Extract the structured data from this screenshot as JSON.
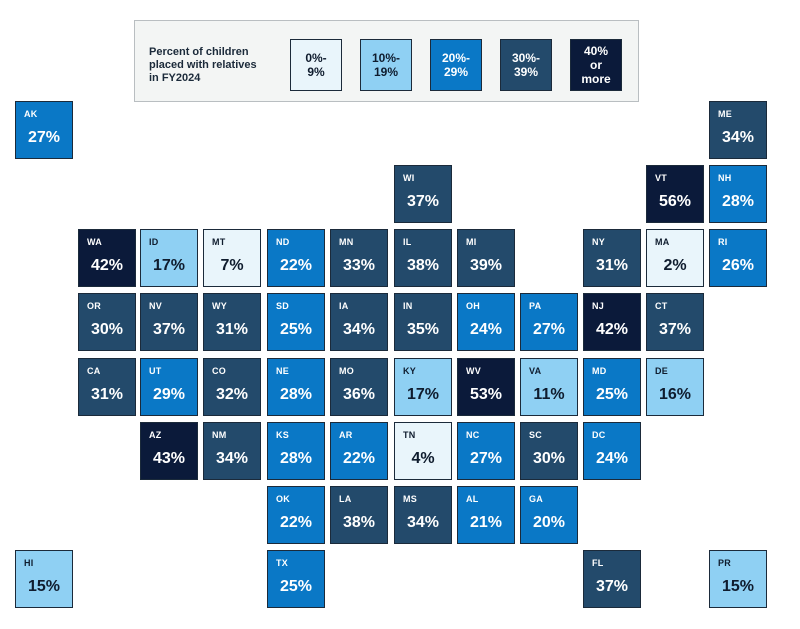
{
  "legend": {
    "title": "Percent of children\nplaced with relatives\nin FY2024",
    "bins": [
      {
        "label": "0%-\n9%",
        "min": 0,
        "max": 9,
        "color": "#e9f5fb"
      },
      {
        "label": "10%-\n19%",
        "min": 10,
        "max": 19,
        "color": "#8fd0f3"
      },
      {
        "label": "20%-\n29%",
        "min": 20,
        "max": 29,
        "color": "#0a78c6"
      },
      {
        "label": "30%-\n39%",
        "min": 30,
        "max": 39,
        "color": "#234a6b"
      },
      {
        "label": "40%\nor\nmore",
        "min": 40,
        "max": 100,
        "color": "#0b1a3a"
      }
    ]
  },
  "states": [
    {
      "abbr": "AK",
      "value": "27%",
      "pct": 27
    },
    {
      "abbr": "ME",
      "value": "34%",
      "pct": 34
    },
    {
      "abbr": "WI",
      "value": "37%",
      "pct": 37
    },
    {
      "abbr": "VT",
      "value": "56%",
      "pct": 56
    },
    {
      "abbr": "NH",
      "value": "28%",
      "pct": 28
    },
    {
      "abbr": "WA",
      "value": "42%",
      "pct": 42
    },
    {
      "abbr": "ID",
      "value": "17%",
      "pct": 17
    },
    {
      "abbr": "MT",
      "value": "7%",
      "pct": 7
    },
    {
      "abbr": "ND",
      "value": "22%",
      "pct": 22
    },
    {
      "abbr": "MN",
      "value": "33%",
      "pct": 33
    },
    {
      "abbr": "IL",
      "value": "38%",
      "pct": 38
    },
    {
      "abbr": "MI",
      "value": "39%",
      "pct": 39
    },
    {
      "abbr": "NY",
      "value": "31%",
      "pct": 31
    },
    {
      "abbr": "MA",
      "value": "2%",
      "pct": 2
    },
    {
      "abbr": "RI",
      "value": "26%",
      "pct": 26
    },
    {
      "abbr": "OR",
      "value": "30%",
      "pct": 30
    },
    {
      "abbr": "NV",
      "value": "37%",
      "pct": 37
    },
    {
      "abbr": "WY",
      "value": "31%",
      "pct": 31
    },
    {
      "abbr": "SD",
      "value": "25%",
      "pct": 25
    },
    {
      "abbr": "IA",
      "value": "34%",
      "pct": 34
    },
    {
      "abbr": "IN",
      "value": "35%",
      "pct": 35
    },
    {
      "abbr": "OH",
      "value": "24%",
      "pct": 24
    },
    {
      "abbr": "PA",
      "value": "27%",
      "pct": 27
    },
    {
      "abbr": "NJ",
      "value": "42%",
      "pct": 42
    },
    {
      "abbr": "CT",
      "value": "37%",
      "pct": 37
    },
    {
      "abbr": "CA",
      "value": "31%",
      "pct": 31
    },
    {
      "abbr": "UT",
      "value": "29%",
      "pct": 29
    },
    {
      "abbr": "CO",
      "value": "32%",
      "pct": 32
    },
    {
      "abbr": "NE",
      "value": "28%",
      "pct": 28
    },
    {
      "abbr": "MO",
      "value": "36%",
      "pct": 36
    },
    {
      "abbr": "KY",
      "value": "17%",
      "pct": 17
    },
    {
      "abbr": "WV",
      "value": "53%",
      "pct": 53
    },
    {
      "abbr": "VA",
      "value": "11%",
      "pct": 11
    },
    {
      "abbr": "MD",
      "value": "25%",
      "pct": 25
    },
    {
      "abbr": "DE",
      "value": "16%",
      "pct": 16
    },
    {
      "abbr": "AZ",
      "value": "43%",
      "pct": 43
    },
    {
      "abbr": "NM",
      "value": "34%",
      "pct": 34
    },
    {
      "abbr": "KS",
      "value": "28%",
      "pct": 28
    },
    {
      "abbr": "AR",
      "value": "22%",
      "pct": 22
    },
    {
      "abbr": "TN",
      "value": "4%",
      "pct": 4
    },
    {
      "abbr": "NC",
      "value": "27%",
      "pct": 27
    },
    {
      "abbr": "SC",
      "value": "30%",
      "pct": 30
    },
    {
      "abbr": "DC",
      "value": "24%",
      "pct": 24
    },
    {
      "abbr": "OK",
      "value": "22%",
      "pct": 22
    },
    {
      "abbr": "LA",
      "value": "38%",
      "pct": 38
    },
    {
      "abbr": "MS",
      "value": "34%",
      "pct": 34
    },
    {
      "abbr": "AL",
      "value": "21%",
      "pct": 21
    },
    {
      "abbr": "GA",
      "value": "20%",
      "pct": 20
    },
    {
      "abbr": "HI",
      "value": "15%",
      "pct": 15
    },
    {
      "abbr": "TX",
      "value": "25%",
      "pct": 25
    },
    {
      "abbr": "FL",
      "value": "37%",
      "pct": 37
    },
    {
      "abbr": "PR",
      "value": "15%",
      "pct": 15
    }
  ]
}
